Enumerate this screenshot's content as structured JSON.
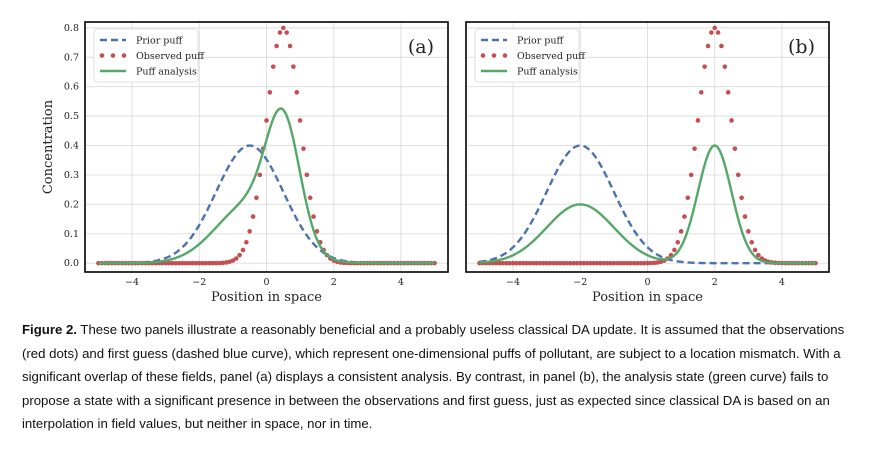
{
  "chart_data": [
    {
      "type": "line",
      "panel_label": "(a)",
      "xlabel": "Position in space",
      "ylabel": "Concentration",
      "xlim": [
        -5.4,
        5.4
      ],
      "ylim": [
        -0.03,
        0.82
      ],
      "xticks": [
        -4,
        -2,
        0,
        2,
        4
      ],
      "yticks": [
        0.0,
        0.1,
        0.2,
        0.3,
        0.4,
        0.5,
        0.6,
        0.7,
        0.8
      ],
      "ytick_labels": [
        "0.0",
        "0.1",
        "0.2",
        "0.3",
        "0.4",
        "0.5",
        "0.6",
        "0.7",
        "0.8"
      ],
      "grid": true,
      "legend_position": "top-left",
      "x_range": [
        -5,
        5
      ],
      "series": [
        {
          "name": "Prior puff",
          "style": "dashed",
          "color": "#4c72b0",
          "gaussian": {
            "amplitude": 0.4,
            "mean": -0.5,
            "sigma": 1.0
          }
        },
        {
          "name": "Observed puff",
          "style": "dotted",
          "color": "#c44e52",
          "gaussian": {
            "amplitude": 0.8,
            "mean": 0.5,
            "sigma": 0.5
          }
        },
        {
          "name": "Puff analysis",
          "style": "solid",
          "color": "#55a868",
          "mixture": [
            {
              "amplitude": 0.2,
              "mean": -0.5,
              "sigma": 1.0
            },
            {
              "amplitude": 0.4,
              "mean": 0.5,
              "sigma": 0.5
            }
          ]
        }
      ]
    },
    {
      "type": "line",
      "panel_label": "(b)",
      "xlabel": "Position in space",
      "ylabel": "",
      "xlim": [
        -5.4,
        5.4
      ],
      "ylim": [
        -0.03,
        0.82
      ],
      "xticks": [
        -4,
        -2,
        0,
        2,
        4
      ],
      "yticks": [],
      "grid": true,
      "legend_position": "top-left",
      "x_range": [
        -5,
        5
      ],
      "series": [
        {
          "name": "Prior puff",
          "style": "dashed",
          "color": "#4c72b0",
          "gaussian": {
            "amplitude": 0.4,
            "mean": -2.0,
            "sigma": 1.0
          }
        },
        {
          "name": "Observed puff",
          "style": "dotted",
          "color": "#c44e52",
          "gaussian": {
            "amplitude": 0.8,
            "mean": 2.0,
            "sigma": 0.5
          }
        },
        {
          "name": "Puff analysis",
          "style": "solid",
          "color": "#55a868",
          "mixture": [
            {
              "amplitude": 0.2,
              "mean": -2.0,
              "sigma": 1.0
            },
            {
              "amplitude": 0.4,
              "mean": 2.0,
              "sigma": 0.5
            }
          ]
        }
      ]
    }
  ],
  "caption": {
    "label": "Figure 2.",
    "text": " These two panels illustrate a reasonably beneficial and a probably useless classical DA update. It is assumed that the observations (red dots) and first guess (dashed blue curve), which represent one-dimensional puffs of pollutant, are subject to a location mismatch. With a significant overlap of these fields, panel (a) displays a consistent analysis. By contrast, in panel (b), the analysis state (green curve) fails to propose a state with a significant presence in between the observations and first guess, just as expected since classical DA is based on an interpolation in field values, but neither in space, nor in time."
  }
}
